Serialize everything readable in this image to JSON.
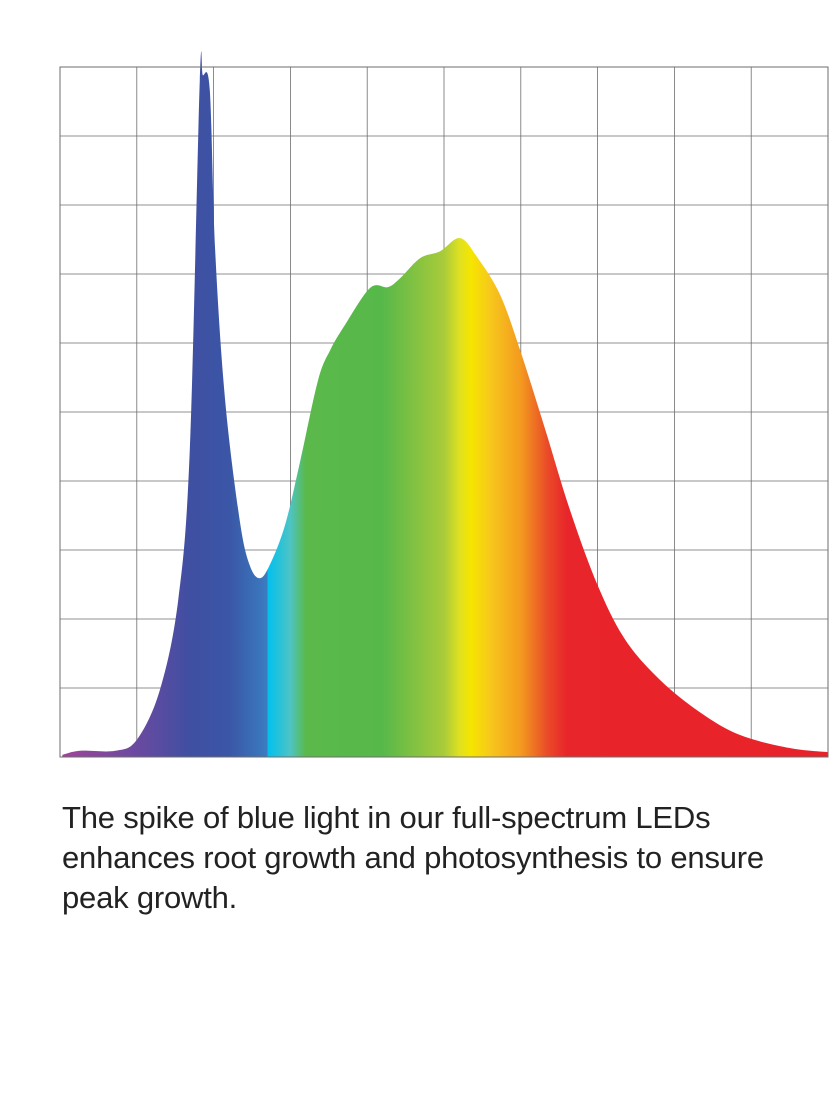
{
  "chart_data": {
    "type": "area",
    "title": "",
    "xlabel": "",
    "ylabel": "",
    "xlim": [
      0,
      10
    ],
    "ylim": [
      0,
      10
    ],
    "grid": true,
    "grid_divisions": {
      "x": 10,
      "y": 10
    },
    "fill": "spectral rainbow gradient (violet → blue → cyan → green → yellow → orange → red)",
    "series": [
      {
        "x": [
          0.03,
          0.26,
          0.72,
          1.0,
          1.3,
          1.54,
          1.69,
          1.82,
          1.86,
          1.95,
          2.02,
          2.15,
          2.34,
          2.47,
          2.6,
          2.73,
          2.93,
          3.13,
          3.36,
          3.52,
          3.71,
          4.04,
          4.27,
          4.43,
          4.69,
          4.95,
          5.21,
          5.44,
          5.73,
          5.99,
          6.32,
          6.64,
          7.0,
          7.36,
          7.81,
          8.33,
          8.85,
          9.5,
          10.0
        ],
        "y": [
          0.03,
          0.09,
          0.09,
          0.25,
          0.97,
          2.28,
          4.45,
          9.8,
          9.88,
          9.67,
          7.35,
          5.17,
          3.43,
          2.78,
          2.59,
          2.78,
          3.36,
          4.3,
          5.46,
          5.9,
          6.26,
          6.8,
          6.81,
          6.94,
          7.23,
          7.33,
          7.52,
          7.23,
          6.7,
          5.9,
          4.74,
          3.58,
          2.49,
          1.7,
          1.12,
          0.65,
          0.32,
          0.13,
          0.07
        ]
      }
    ],
    "colors": {
      "violet": "#8e3f9e",
      "blue": "#3b4fa0",
      "cyan": "#00c0ef",
      "green": "#57b84a",
      "yellow": "#f2e600",
      "orange": "#f39a1f",
      "red": "#e8252a",
      "grid": "#6e6e6e"
    }
  },
  "caption": "The spike of blue light in our full-spectrum LEDs enhances root growth and photosynthesis to ensure peak growth."
}
